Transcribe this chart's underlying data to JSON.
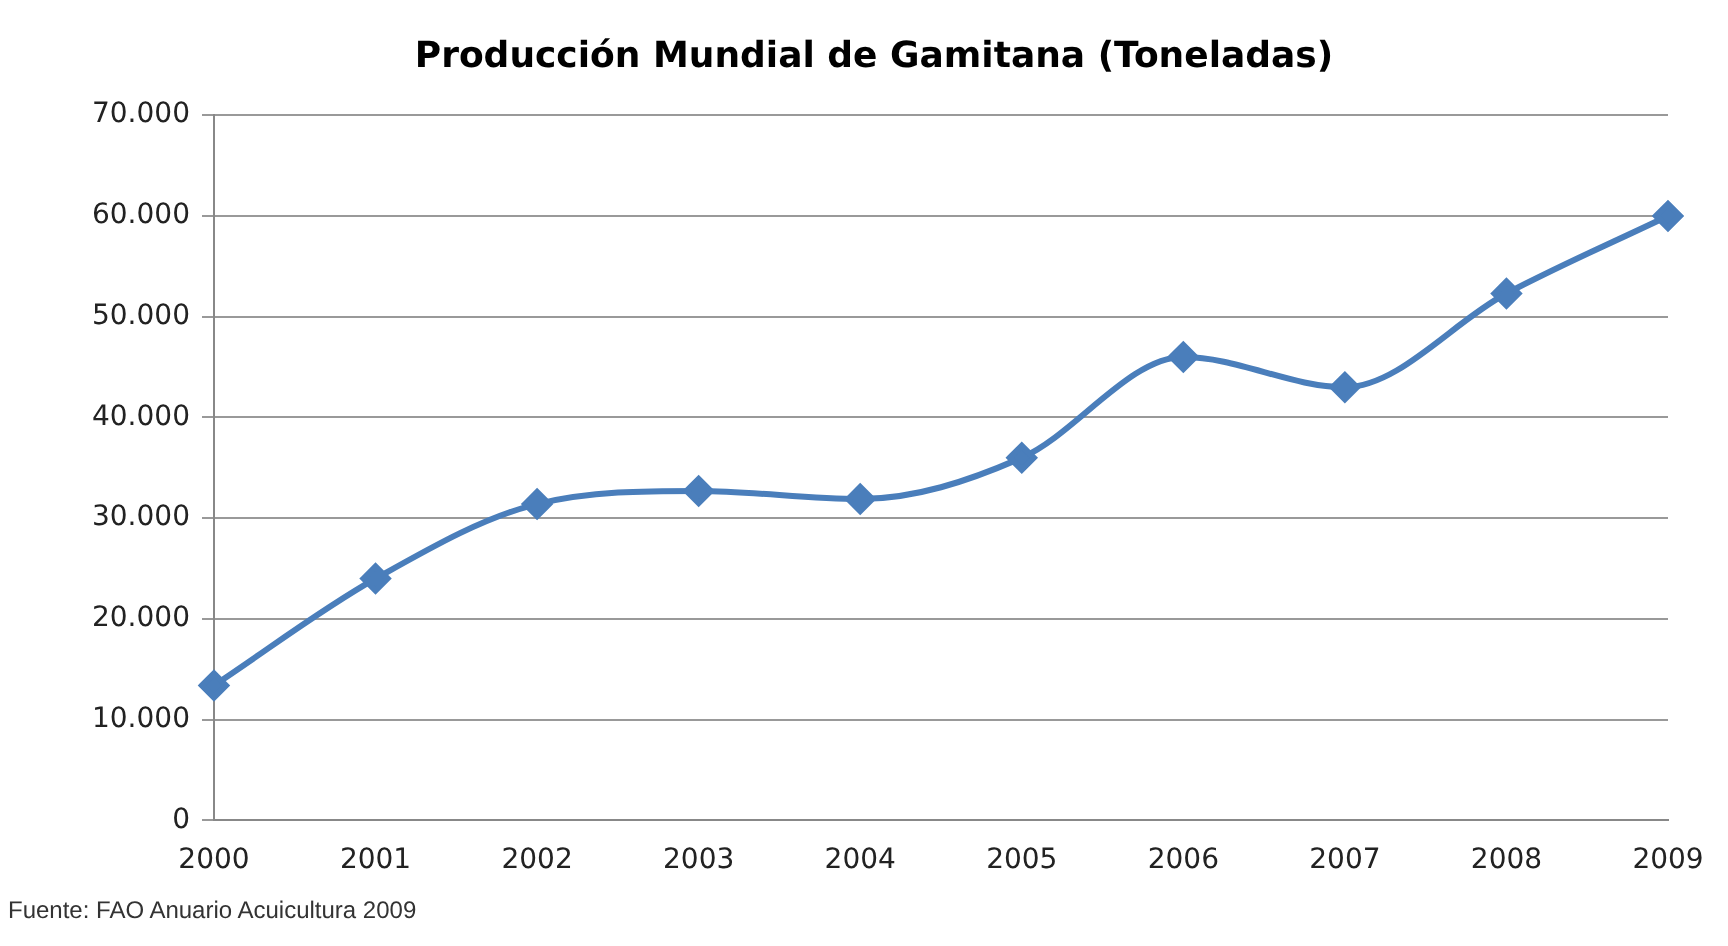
{
  "chart_data": {
    "type": "line",
    "title": "Producción Mundial de Gamitana (Toneladas)",
    "categories": [
      "2000",
      "2001",
      "2002",
      "2003",
      "2004",
      "2005",
      "2006",
      "2007",
      "2008",
      "2009"
    ],
    "series": [
      {
        "color": "#4a7ebb",
        "values": [
          13400,
          24000,
          31400,
          32700,
          31900,
          36000,
          46000,
          43000,
          52300,
          60000
        ]
      }
    ],
    "ylim": [
      0,
      70000
    ],
    "yticks": [
      0,
      {
        "value": 10000,
        "label": "10.000"
      },
      {
        "value": 20000,
        "label": "20.000"
      },
      {
        "value": 30000,
        "label": "30.000"
      },
      {
        "value": 40000,
        "label": "40.000"
      },
      {
        "value": 50000,
        "label": "50.000"
      },
      {
        "value": 60000,
        "label": "60.000"
      },
      {
        "value": 70000,
        "label": "70.000"
      }
    ],
    "grid": "y",
    "legend": false,
    "marker": "diamond",
    "line_style": "solid",
    "annotations": [
      "Fuente: FAO Anuario Acuicultura  2009"
    ]
  }
}
